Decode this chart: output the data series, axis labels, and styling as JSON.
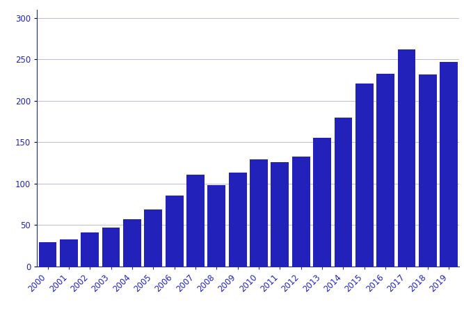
{
  "years": [
    "2000",
    "2001",
    "2002",
    "2003",
    "2004",
    "2005",
    "2006",
    "2007",
    "2008",
    "2009",
    "2010",
    "2011",
    "2012",
    "2013",
    "2014",
    "2015",
    "2016",
    "2017",
    "2018",
    "2019"
  ],
  "values": [
    29,
    33,
    41,
    47,
    57,
    69,
    86,
    111,
    98,
    113,
    129,
    126,
    133,
    155,
    180,
    221,
    233,
    262,
    232,
    247
  ],
  "bar_color": "#2222BB",
  "ylim": [
    0,
    310
  ],
  "yticks": [
    0,
    50,
    100,
    150,
    200,
    250,
    300
  ],
  "grid_color": "#bbbbdd",
  "background_color": "#ffffff",
  "tick_label_color": "#2222BB",
  "tick_label_fontsize": 8.5,
  "bar_width": 0.85
}
